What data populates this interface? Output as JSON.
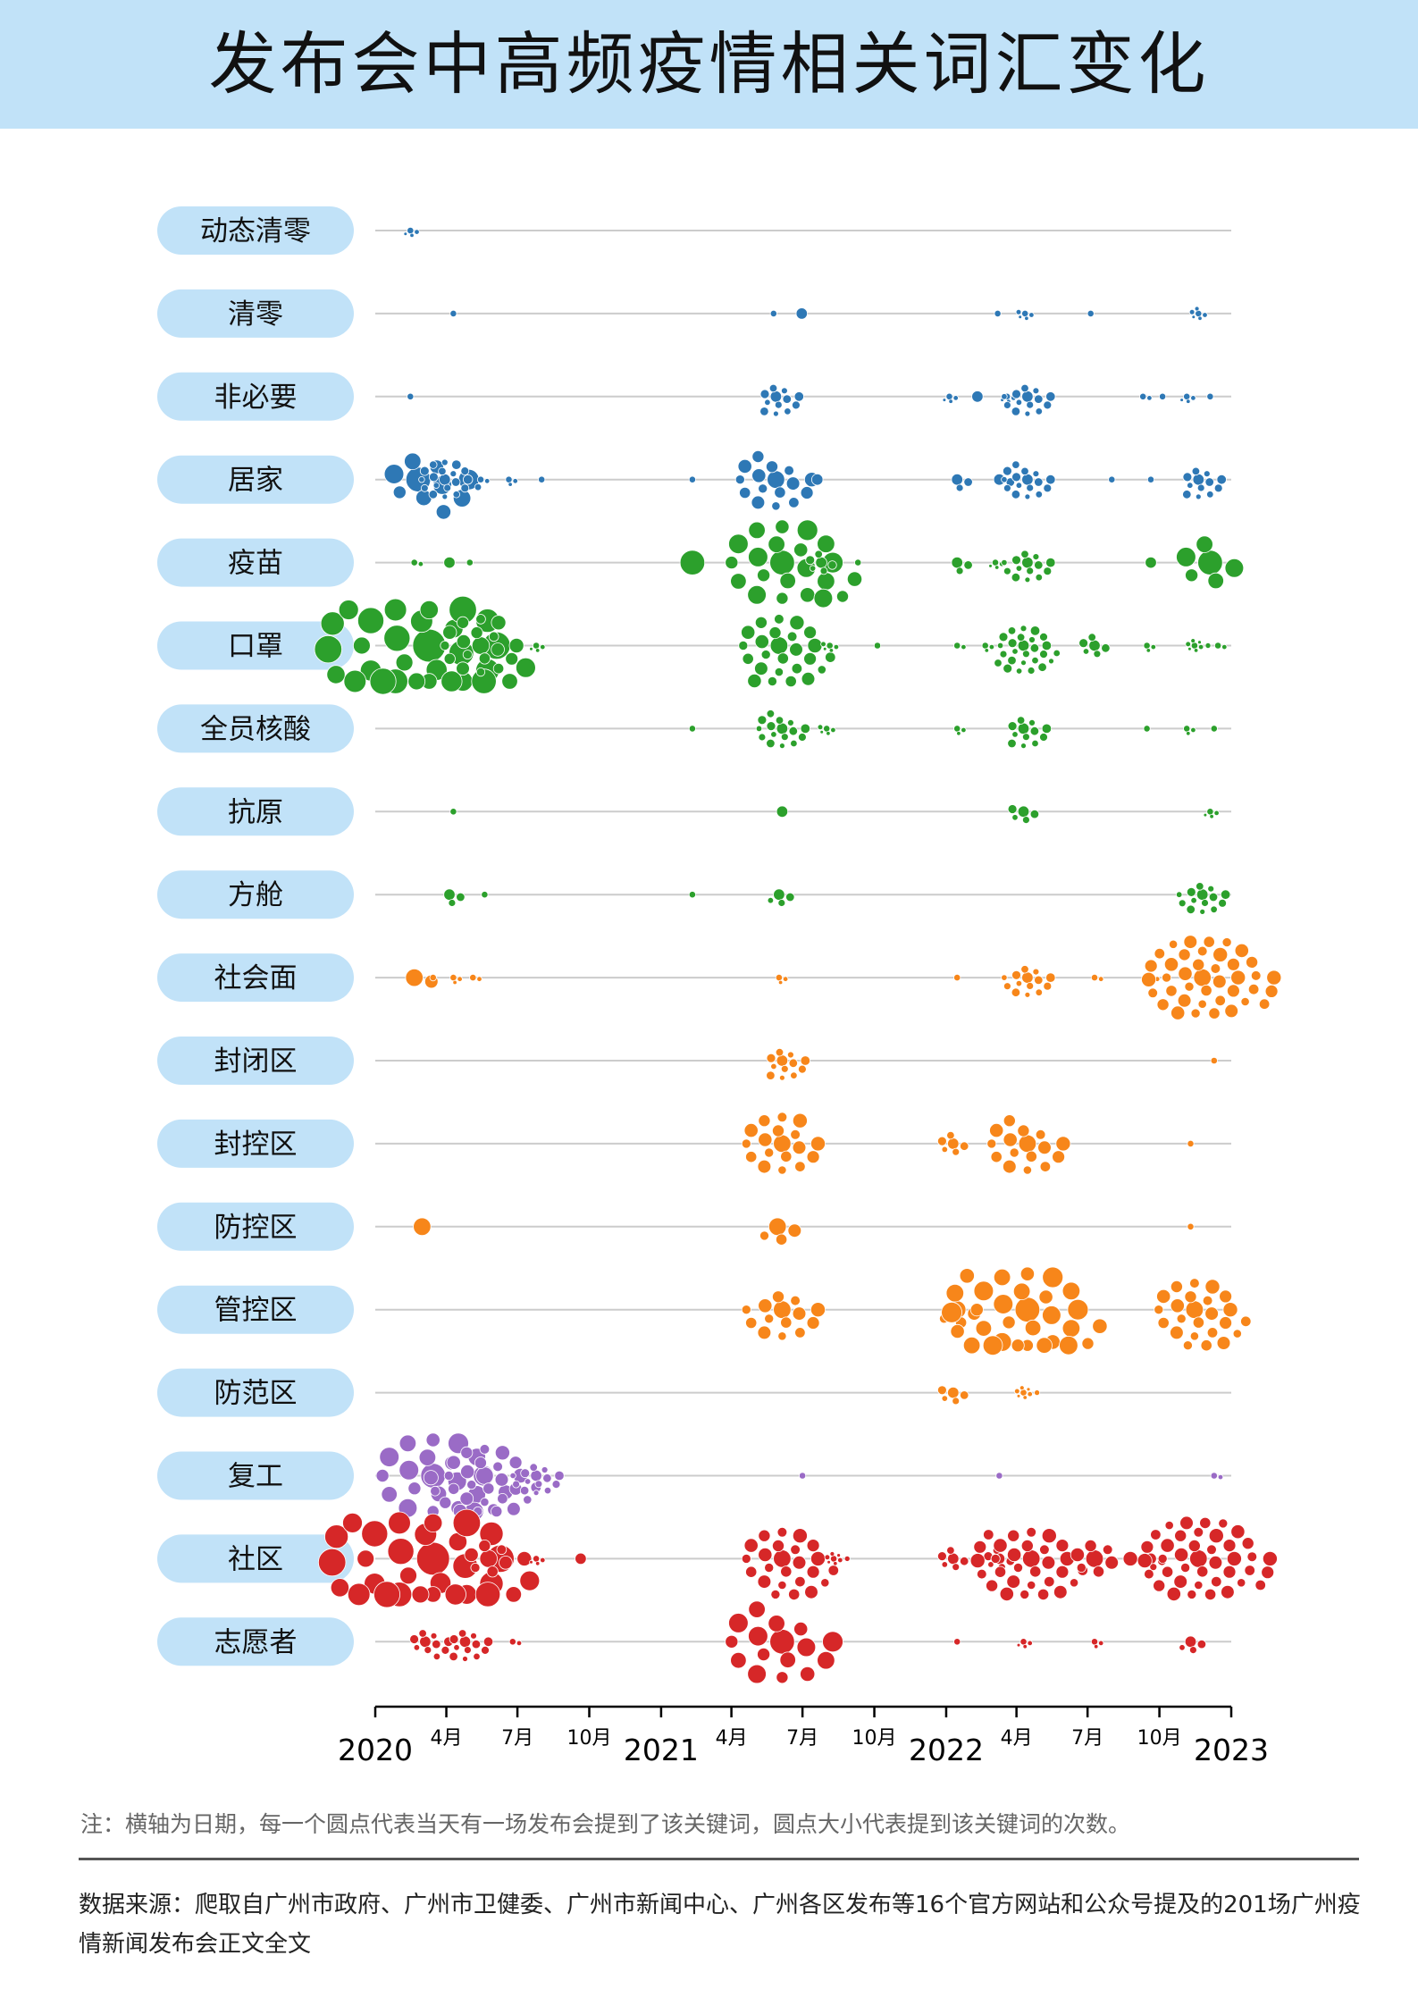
{
  "title": "发布会中高频疫情相关词汇变化",
  "note": "注：横轴为日期，每一个圆点代表当天有一场发布会提到了该关键词，圆点大小代表提到该关键词的次数。",
  "source": "数据来源：爬取自广州市政府、广州市卫健委、广州市新闻中心、广州各区发布等16个官方网站和公众号提及的201场广州疫情新闻发布会正文全文",
  "colors": {
    "blue": "#2e78b5",
    "green": "#2ca02c",
    "orange": "#f7861a",
    "purple": "#9a6bc6",
    "red": "#d62728",
    "label_bg": "#c1e2f8",
    "line": "#cccccc"
  },
  "chart_data": {
    "type": "scatter",
    "title": "发布会中高频疫情相关词汇变化",
    "x_axis": {
      "range": [
        "2020-01-01",
        "2023-01-01"
      ],
      "ticks": [
        {
          "date": "2020-01-01",
          "label": "2020",
          "major": true
        },
        {
          "date": "2020-04-01",
          "label": "4月",
          "major": false
        },
        {
          "date": "2020-07-01",
          "label": "7月",
          "major": false
        },
        {
          "date": "2020-10-01",
          "label": "10月",
          "major": false
        },
        {
          "date": "2021-01-01",
          "label": "2021",
          "major": true
        },
        {
          "date": "2021-04-01",
          "label": "4月",
          "major": false
        },
        {
          "date": "2021-07-01",
          "label": "7月",
          "major": false
        },
        {
          "date": "2021-10-01",
          "label": "10月",
          "major": false
        },
        {
          "date": "2022-01-01",
          "label": "2022",
          "major": true
        },
        {
          "date": "2022-04-01",
          "label": "4月",
          "major": false
        },
        {
          "date": "2022-07-01",
          "label": "7月",
          "major": false
        },
        {
          "date": "2022-10-01",
          "label": "10月",
          "major": false
        },
        {
          "date": "2023-01-01",
          "label": "2023",
          "major": true
        }
      ]
    },
    "series": [
      {
        "name": "动态清零",
        "color": "blue",
        "groups": [
          {
            "date": "2020-02-15",
            "n": 4,
            "s": 1
          }
        ]
      },
      {
        "name": "清零",
        "color": "blue",
        "groups": [
          {
            "date": "2020-04-10",
            "n": 1,
            "s": 1
          },
          {
            "date": "2021-05-25",
            "n": 1,
            "s": 1
          },
          {
            "date": "2021-06-30",
            "n": 1,
            "s": 2
          },
          {
            "date": "2022-03-08",
            "n": 1,
            "s": 1
          },
          {
            "date": "2022-04-12",
            "n": 5,
            "s": 1
          },
          {
            "date": "2022-07-05",
            "n": 1,
            "s": 1
          },
          {
            "date": "2022-11-20",
            "n": 6,
            "s": 1
          }
        ]
      },
      {
        "name": "非必要",
        "color": "blue",
        "groups": [
          {
            "date": "2020-02-15",
            "n": 1,
            "s": 1
          },
          {
            "date": "2021-05-28",
            "n": 12,
            "s": 2
          },
          {
            "date": "2022-01-05",
            "n": 4,
            "s": 1
          },
          {
            "date": "2022-02-10",
            "n": 1,
            "s": 2
          },
          {
            "date": "2022-03-20",
            "n": 4,
            "s": 1
          },
          {
            "date": "2022-04-15",
            "n": 14,
            "s": 2
          },
          {
            "date": "2022-09-10",
            "n": 2,
            "s": 1
          },
          {
            "date": "2022-10-05",
            "n": 1,
            "s": 1
          },
          {
            "date": "2022-11-05",
            "n": 4,
            "s": 1
          },
          {
            "date": "2022-12-05",
            "n": 1,
            "s": 1
          }
        ]
      },
      {
        "name": "居家",
        "color": "blue",
        "groups": [
          {
            "date": "2020-02-25",
            "n": 10,
            "s": 4
          },
          {
            "date": "2020-03-30",
            "n": 20,
            "s": 2
          },
          {
            "date": "2020-05-15",
            "n": 2,
            "s": 1
          },
          {
            "date": "2020-06-20",
            "n": 3,
            "s": 1
          },
          {
            "date": "2020-08-01",
            "n": 1,
            "s": 1
          },
          {
            "date": "2021-02-10",
            "n": 1,
            "s": 1
          },
          {
            "date": "2021-05-28",
            "n": 16,
            "s": 3
          },
          {
            "date": "2021-07-20",
            "n": 1,
            "s": 2
          },
          {
            "date": "2022-01-15",
            "n": 3,
            "s": 2
          },
          {
            "date": "2022-03-10",
            "n": 2,
            "s": 2
          },
          {
            "date": "2022-04-15",
            "n": 16,
            "s": 2
          },
          {
            "date": "2022-08-01",
            "n": 1,
            "s": 1
          },
          {
            "date": "2022-09-20",
            "n": 1,
            "s": 1
          },
          {
            "date": "2022-11-20",
            "n": 12,
            "s": 2
          }
        ]
      },
      {
        "name": "疫苗",
        "color": "green",
        "groups": [
          {
            "date": "2020-02-20",
            "n": 2,
            "s": 1
          },
          {
            "date": "2020-04-05",
            "n": 1,
            "s": 2
          },
          {
            "date": "2020-05-01",
            "n": 1,
            "s": 1
          },
          {
            "date": "2021-02-10",
            "n": 1,
            "s": 4
          },
          {
            "date": "2021-06-05",
            "n": 22,
            "s": 4
          },
          {
            "date": "2021-07-25",
            "n": 6,
            "s": 2
          },
          {
            "date": "2021-09-10",
            "n": 1,
            "s": 1
          },
          {
            "date": "2022-01-15",
            "n": 3,
            "s": 2
          },
          {
            "date": "2022-03-05",
            "n": 4,
            "s": 1
          },
          {
            "date": "2022-04-15",
            "n": 14,
            "s": 2
          },
          {
            "date": "2022-09-20",
            "n": 1,
            "s": 2
          },
          {
            "date": "2022-12-05",
            "n": 6,
            "s": 4
          }
        ]
      },
      {
        "name": "口罩",
        "color": "green",
        "groups": [
          {
            "date": "2020-03-10",
            "n": 30,
            "s": 5
          },
          {
            "date": "2020-05-15",
            "n": 18,
            "s": 3
          },
          {
            "date": "2020-07-25",
            "n": 4,
            "s": 1
          },
          {
            "date": "2021-06-01",
            "n": 25,
            "s": 3
          },
          {
            "date": "2021-08-05",
            "n": 5,
            "s": 1
          },
          {
            "date": "2021-10-05",
            "n": 1,
            "s": 1
          },
          {
            "date": "2022-01-15",
            "n": 2,
            "s": 1
          },
          {
            "date": "2022-02-20",
            "n": 3,
            "s": 1
          },
          {
            "date": "2022-04-10",
            "n": 26,
            "s": 2
          },
          {
            "date": "2022-07-10",
            "n": 6,
            "s": 2
          },
          {
            "date": "2022-09-15",
            "n": 3,
            "s": 1
          },
          {
            "date": "2022-11-15",
            "n": 8,
            "s": 1
          },
          {
            "date": "2022-12-15",
            "n": 2,
            "s": 1
          }
        ]
      },
      {
        "name": "全员核酸",
        "color": "green",
        "groups": [
          {
            "date": "2021-02-10",
            "n": 1,
            "s": 1
          },
          {
            "date": "2021-06-05",
            "n": 16,
            "s": 2
          },
          {
            "date": "2021-08-01",
            "n": 5,
            "s": 1
          },
          {
            "date": "2022-01-15",
            "n": 3,
            "s": 1
          },
          {
            "date": "2022-04-10",
            "n": 12,
            "s": 2
          },
          {
            "date": "2022-09-15",
            "n": 1,
            "s": 1
          },
          {
            "date": "2022-11-05",
            "n": 3,
            "s": 1
          },
          {
            "date": "2022-12-10",
            "n": 1,
            "s": 1
          }
        ]
      },
      {
        "name": "抗原",
        "color": "green",
        "groups": [
          {
            "date": "2020-04-10",
            "n": 1,
            "s": 1
          },
          {
            "date": "2021-06-05",
            "n": 1,
            "s": 2
          },
          {
            "date": "2022-04-10",
            "n": 5,
            "s": 2
          },
          {
            "date": "2022-12-05",
            "n": 4,
            "s": 1
          }
        ]
      },
      {
        "name": "方舱",
        "color": "green",
        "groups": [
          {
            "date": "2020-04-05",
            "n": 3,
            "s": 2
          },
          {
            "date": "2020-05-20",
            "n": 1,
            "s": 1
          },
          {
            "date": "2021-02-10",
            "n": 1,
            "s": 1
          },
          {
            "date": "2021-06-01",
            "n": 4,
            "s": 2
          },
          {
            "date": "2022-11-25",
            "n": 14,
            "s": 2
          }
        ]
      },
      {
        "name": "社会面",
        "color": "orange",
        "groups": [
          {
            "date": "2020-02-20",
            "n": 2,
            "s": 3
          },
          {
            "date": "2020-03-15",
            "n": 1,
            "s": 1
          },
          {
            "date": "2020-04-10",
            "n": 3,
            "s": 1
          },
          {
            "date": "2020-05-05",
            "n": 2,
            "s": 1
          },
          {
            "date": "2021-06-01",
            "n": 3,
            "s": 1
          },
          {
            "date": "2022-01-15",
            "n": 1,
            "s": 1
          },
          {
            "date": "2022-04-15",
            "n": 14,
            "s": 2
          },
          {
            "date": "2022-07-10",
            "n": 2,
            "s": 1
          },
          {
            "date": "2022-09-20",
            "n": 4,
            "s": 1
          },
          {
            "date": "2022-11-25",
            "n": 40,
            "s": 3
          }
        ]
      },
      {
        "name": "封闭区",
        "color": "orange",
        "groups": [
          {
            "date": "2021-06-05",
            "n": 12,
            "s": 2
          },
          {
            "date": "2022-12-10",
            "n": 1,
            "s": 1
          }
        ]
      },
      {
        "name": "封控区",
        "color": "orange",
        "groups": [
          {
            "date": "2021-06-05",
            "n": 18,
            "s": 3
          },
          {
            "date": "2022-01-10",
            "n": 6,
            "s": 2
          },
          {
            "date": "2022-04-15",
            "n": 16,
            "s": 3
          },
          {
            "date": "2022-11-10",
            "n": 1,
            "s": 1
          }
        ]
      },
      {
        "name": "防控区",
        "color": "orange",
        "groups": [
          {
            "date": "2020-03-01",
            "n": 1,
            "s": 3
          },
          {
            "date": "2021-05-30",
            "n": 4,
            "s": 3
          },
          {
            "date": "2022-11-10",
            "n": 1,
            "s": 1
          }
        ]
      },
      {
        "name": "管控区",
        "color": "orange",
        "groups": [
          {
            "date": "2021-06-05",
            "n": 14,
            "s": 3
          },
          {
            "date": "2022-01-15",
            "n": 4,
            "s": 3
          },
          {
            "date": "2022-04-15",
            "n": 30,
            "s": 4
          },
          {
            "date": "2022-11-15",
            "n": 24,
            "s": 3
          }
        ]
      },
      {
        "name": "防范区",
        "color": "orange",
        "groups": [
          {
            "date": "2022-01-10",
            "n": 5,
            "s": 2
          },
          {
            "date": "2022-04-10",
            "n": 8,
            "s": 1
          }
        ]
      },
      {
        "name": "复工",
        "color": "purple",
        "groups": [
          {
            "date": "2020-03-15",
            "n": 22,
            "s": 4
          },
          {
            "date": "2020-05-20",
            "n": 28,
            "s": 3
          },
          {
            "date": "2020-07-25",
            "n": 14,
            "s": 2
          },
          {
            "date": "2021-07-01",
            "n": 1,
            "s": 1
          },
          {
            "date": "2022-03-10",
            "n": 1,
            "s": 1
          },
          {
            "date": "2022-12-10",
            "n": 2,
            "s": 1
          }
        ]
      },
      {
        "name": "社区",
        "color": "red",
        "groups": [
          {
            "date": "2020-03-15",
            "n": 30,
            "s": 5
          },
          {
            "date": "2020-05-25",
            "n": 8,
            "s": 3
          },
          {
            "date": "2020-07-25",
            "n": 4,
            "s": 1
          },
          {
            "date": "2020-09-20",
            "n": 1,
            "s": 2
          },
          {
            "date": "2021-06-05",
            "n": 24,
            "s": 3
          },
          {
            "date": "2021-08-10",
            "n": 8,
            "s": 1
          },
          {
            "date": "2022-01-10",
            "n": 6,
            "s": 2
          },
          {
            "date": "2022-03-10",
            "n": 6,
            "s": 2
          },
          {
            "date": "2022-04-20",
            "n": 30,
            "s": 3
          },
          {
            "date": "2022-07-10",
            "n": 8,
            "s": 3
          },
          {
            "date": "2022-09-20",
            "n": 4,
            "s": 2
          },
          {
            "date": "2022-11-20",
            "n": 40,
            "s": 3
          }
        ]
      },
      {
        "name": "志愿者",
        "color": "red",
        "groups": [
          {
            "date": "2020-03-05",
            "n": 10,
            "s": 2
          },
          {
            "date": "2020-04-25",
            "n": 12,
            "s": 2
          },
          {
            "date": "2020-06-25",
            "n": 2,
            "s": 1
          },
          {
            "date": "2021-06-05",
            "n": 16,
            "s": 4
          },
          {
            "date": "2022-01-15",
            "n": 1,
            "s": 1
          },
          {
            "date": "2022-04-10",
            "n": 4,
            "s": 1
          },
          {
            "date": "2022-07-10",
            "n": 3,
            "s": 1
          },
          {
            "date": "2022-11-10",
            "n": 4,
            "s": 2
          }
        ]
      }
    ]
  }
}
